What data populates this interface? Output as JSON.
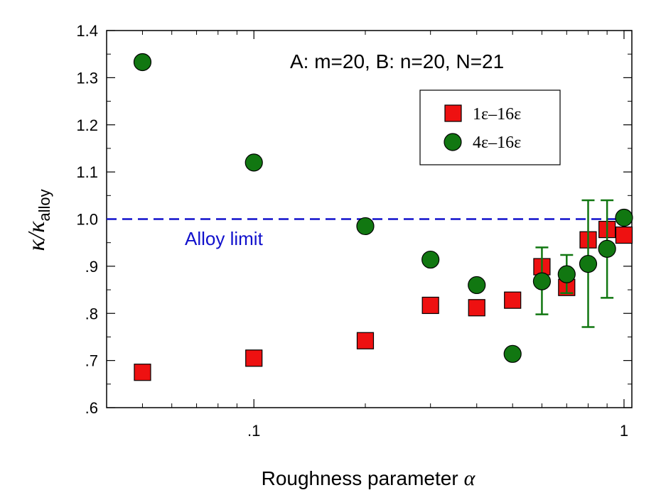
{
  "chart_data": {
    "type": "scatter",
    "x_scale": "log",
    "xlim": [
      0.04,
      1.05
    ],
    "ylim": [
      0.6,
      1.4
    ],
    "xlabel": "Roughness parameter",
    "xlabel_symbol": "α",
    "ylabel_main": "κ/κ",
    "ylabel_sub": "alloy",
    "x_ticks": [
      {
        "value": 0.1,
        "label": ".1"
      },
      {
        "value": 1,
        "label": "1"
      }
    ],
    "y_ticks": [
      {
        "value": 0.6,
        "label": ".6"
      },
      {
        "value": 0.7,
        "label": ".7"
      },
      {
        "value": 0.8,
        "label": ".8"
      },
      {
        "value": 0.9,
        "label": ".9"
      },
      {
        "value": 1.0,
        "label": "1.0"
      },
      {
        "value": 1.1,
        "label": "1.1"
      },
      {
        "value": 1.2,
        "label": "1.2"
      },
      {
        "value": 1.3,
        "label": "1.3"
      },
      {
        "value": 1.4,
        "label": "1.4"
      }
    ],
    "annotation": "A: m=20, B: n=20, N=21",
    "reference_line": {
      "y": 1.0,
      "label": "Alloy limit",
      "color": "#1111cc",
      "style": "dashed"
    },
    "legend": {
      "position": "top-right"
    },
    "series": [
      {
        "name": "1ε–16ε",
        "marker": "square",
        "color": "#ee1111",
        "points": [
          {
            "x": 0.05,
            "y": 0.675
          },
          {
            "x": 0.1,
            "y": 0.705
          },
          {
            "x": 0.2,
            "y": 0.742
          },
          {
            "x": 0.3,
            "y": 0.817
          },
          {
            "x": 0.4,
            "y": 0.812
          },
          {
            "x": 0.5,
            "y": 0.828
          },
          {
            "x": 0.6,
            "y": 0.899
          },
          {
            "x": 0.7,
            "y": 0.855
          },
          {
            "x": 0.8,
            "y": 0.956
          },
          {
            "x": 0.9,
            "y": 0.978
          },
          {
            "x": 1.0,
            "y": 0.966
          }
        ]
      },
      {
        "name": "4ε–16ε",
        "marker": "circle",
        "color": "#117711",
        "error_color": "#117711",
        "points": [
          {
            "x": 0.05,
            "y": 1.333
          },
          {
            "x": 0.1,
            "y": 1.12
          },
          {
            "x": 0.2,
            "y": 0.985
          },
          {
            "x": 0.3,
            "y": 0.914
          },
          {
            "x": 0.4,
            "y": 0.86
          },
          {
            "x": 0.5,
            "y": 0.714
          },
          {
            "x": 0.6,
            "y": 0.868,
            "err_low": 0.798,
            "err_high": 0.94
          },
          {
            "x": 0.7,
            "y": 0.883,
            "err_low": 0.843,
            "err_high": 0.924
          },
          {
            "x": 0.8,
            "y": 0.905,
            "err_low": 0.771,
            "err_high": 1.04
          },
          {
            "x": 0.9,
            "y": 0.937,
            "err_low": 0.833,
            "err_high": 1.04
          },
          {
            "x": 1.0,
            "y": 1.003
          }
        ]
      }
    ]
  }
}
